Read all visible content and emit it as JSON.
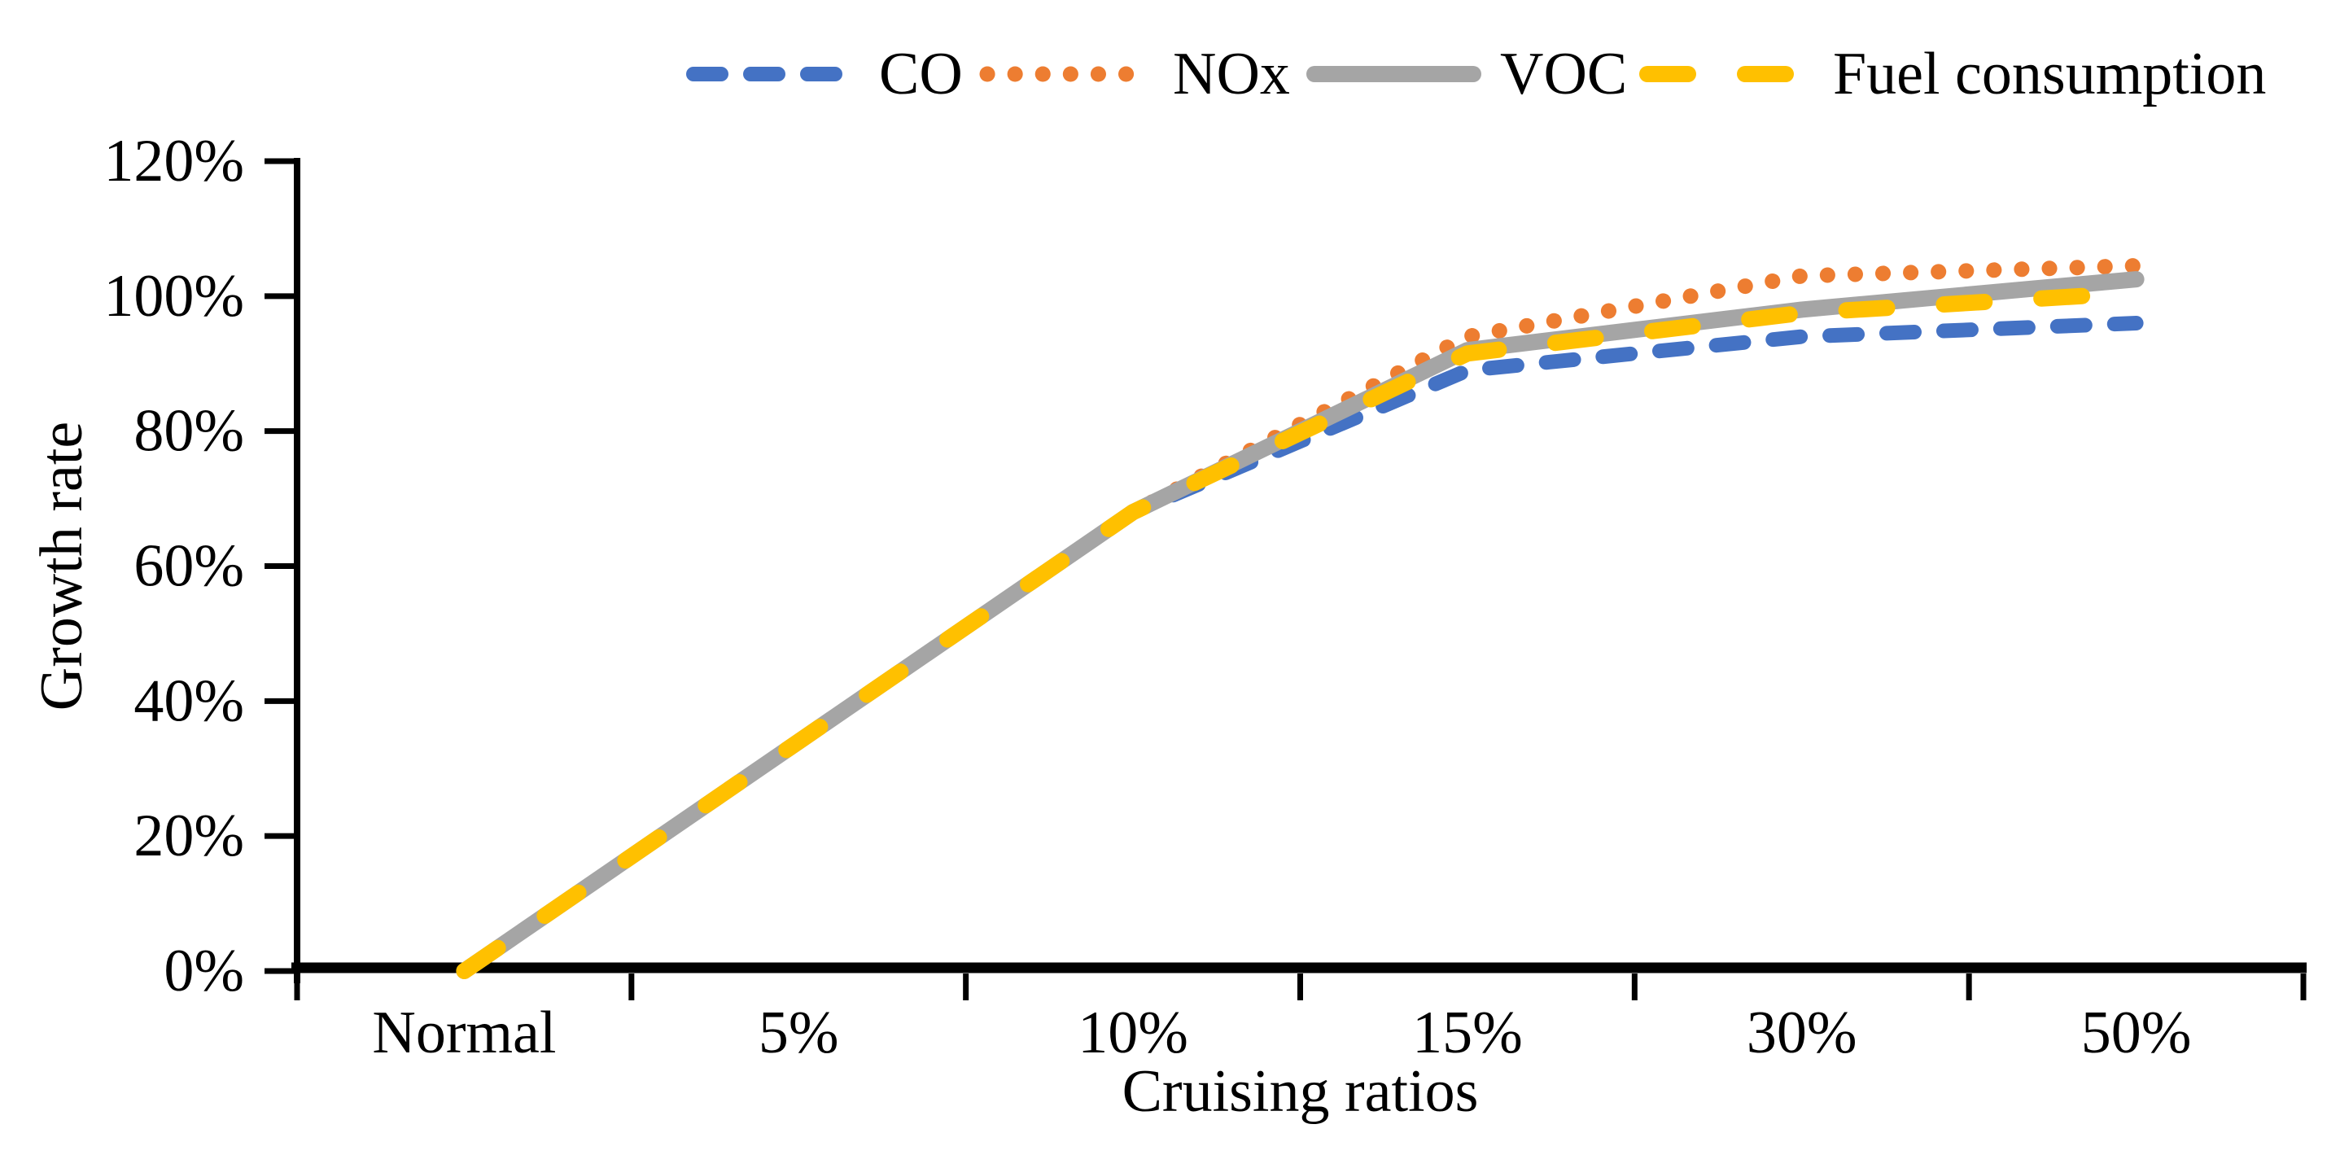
{
  "figure": {
    "background": "#ffffff",
    "axis_color": "#000000"
  },
  "chart_data": {
    "type": "line",
    "title": "",
    "xlabel": "Cruising ratios",
    "ylabel": "Growth rate",
    "categories": [
      "Normal",
      "5%",
      "10%",
      "15%",
      "30%",
      "50%"
    ],
    "y_ticks": [
      "0%",
      "20%",
      "40%",
      "60%",
      "80%",
      "100%",
      "120%"
    ],
    "ylim": [
      0,
      120
    ],
    "y_tick_step": 20,
    "grid": false,
    "legend_position": "top",
    "series": [
      {
        "name": "CO",
        "color": "#4472C4",
        "style": "dashed",
        "values_pct": [
          0,
          34,
          68,
          89,
          94,
          96
        ]
      },
      {
        "name": "NOx",
        "color": "#ED7D31",
        "style": "dotted",
        "values_pct": [
          0,
          34,
          68,
          94,
          103,
          104.5
        ]
      },
      {
        "name": "VOC",
        "color": "#A5A5A5",
        "style": "solid",
        "values_pct": [
          0,
          34,
          68,
          92,
          98,
          102.5
        ]
      },
      {
        "name": "Fuel consumption",
        "color": "#FFC000",
        "style": "long-dash",
        "values_pct": [
          0,
          34,
          68,
          91.5,
          97.5,
          100.5
        ]
      }
    ]
  }
}
